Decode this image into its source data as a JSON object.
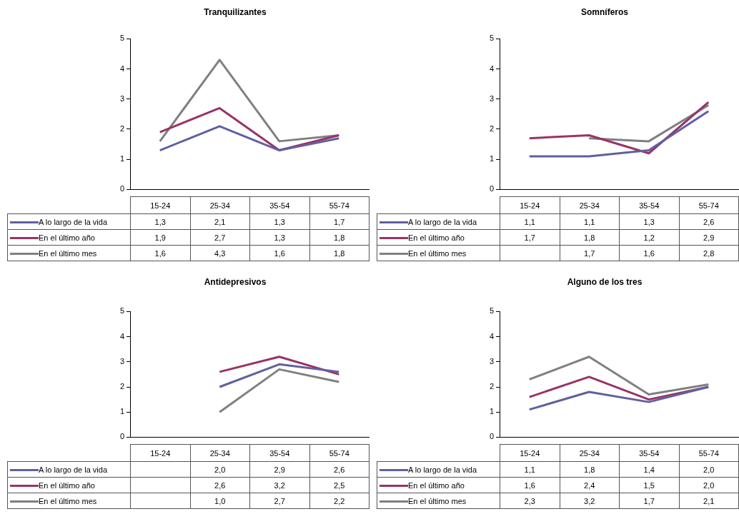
{
  "chart_data": [
    {
      "type": "line",
      "title": "Tranquilizantes",
      "categories": [
        "15-24",
        "25-34",
        "35-54",
        "55-74"
      ],
      "ylim": [
        0,
        5
      ],
      "yticks": [
        0,
        1,
        2,
        3,
        4,
        5
      ],
      "legend": "bottom",
      "marker": "none",
      "series": [
        {
          "name": "A lo largo de la vida",
          "color": "#6060a0",
          "values": [
            1.3,
            2.1,
            1.3,
            1.7
          ],
          "value_labels": [
            "1,3",
            "2,1",
            "1,3",
            "1,7"
          ]
        },
        {
          "name": "En el último año",
          "color": "#993366",
          "values": [
            1.9,
            2.7,
            1.3,
            1.8
          ],
          "value_labels": [
            "1,9",
            "2,7",
            "1,3",
            "1,8"
          ]
        },
        {
          "name": "En el último mes",
          "color": "#808080",
          "values": [
            1.6,
            4.3,
            1.6,
            1.8
          ],
          "value_labels": [
            "1,6",
            "4,3",
            "1,6",
            "1,8"
          ]
        }
      ]
    },
    {
      "type": "line",
      "title": "Somníferos",
      "categories": [
        "15-24",
        "25-34",
        "35-54",
        "55-74"
      ],
      "ylim": [
        0,
        5
      ],
      "yticks": [
        0,
        1,
        2,
        3,
        4,
        5
      ],
      "legend": "bottom",
      "marker": "none",
      "series": [
        {
          "name": "A lo largo de la vida",
          "color": "#6060a0",
          "values": [
            1.1,
            1.1,
            1.3,
            2.6
          ],
          "value_labels": [
            "1,1",
            "1,1",
            "1,3",
            "2,6"
          ]
        },
        {
          "name": "En el último año",
          "color": "#993366",
          "values": [
            1.7,
            1.8,
            1.2,
            2.9
          ],
          "value_labels": [
            "1,7",
            "1,8",
            "1,2",
            "2,9"
          ]
        },
        {
          "name": "En el último mes",
          "color": "#808080",
          "values": [
            null,
            1.7,
            1.6,
            2.8
          ],
          "value_labels": [
            null,
            "1,7",
            "1,6",
            "2,8"
          ]
        }
      ]
    },
    {
      "type": "line",
      "title": "Antidepresivos",
      "categories": [
        "15-24",
        "25-34",
        "35-54",
        "55-74"
      ],
      "ylim": [
        0,
        5
      ],
      "yticks": [
        0,
        1,
        2,
        3,
        4,
        5
      ],
      "legend": "bottom",
      "marker": "none",
      "series": [
        {
          "name": "A lo largo de la vida",
          "color": "#6060a0",
          "values": [
            null,
            2.0,
            2.9,
            2.6
          ],
          "value_labels": [
            null,
            "2,0",
            "2,9",
            "2,6"
          ]
        },
        {
          "name": "En el último año",
          "color": "#993366",
          "values": [
            null,
            2.6,
            3.2,
            2.5
          ],
          "value_labels": [
            null,
            "2,6",
            "3,2",
            "2,5"
          ]
        },
        {
          "name": "En el último mes",
          "color": "#808080",
          "values": [
            null,
            1.0,
            2.7,
            2.2
          ],
          "value_labels": [
            null,
            "1,0",
            "2,7",
            "2,2"
          ]
        }
      ]
    },
    {
      "type": "line",
      "title": "Alguno de los tres",
      "categories": [
        "15-24",
        "25-34",
        "35-54",
        "55-74"
      ],
      "ylim": [
        0,
        5
      ],
      "yticks": [
        0,
        1,
        2,
        3,
        4,
        5
      ],
      "legend": "bottom",
      "marker": "none",
      "series": [
        {
          "name": "A lo largo de la vida",
          "color": "#6060a0",
          "values": [
            1.1,
            1.8,
            1.4,
            2.0
          ],
          "value_labels": [
            "1,1",
            "1,8",
            "1,4",
            "2,0"
          ]
        },
        {
          "name": "En el último año",
          "color": "#993366",
          "values": [
            1.6,
            2.4,
            1.5,
            2.0
          ],
          "value_labels": [
            "1,6",
            "2,4",
            "1,5",
            "2,0"
          ]
        },
        {
          "name": "En el último mes",
          "color": "#808080",
          "values": [
            2.3,
            3.2,
            1.7,
            2.1
          ],
          "value_labels": [
            "2,3",
            "3,2",
            "1,7",
            "2,1"
          ]
        }
      ]
    }
  ]
}
